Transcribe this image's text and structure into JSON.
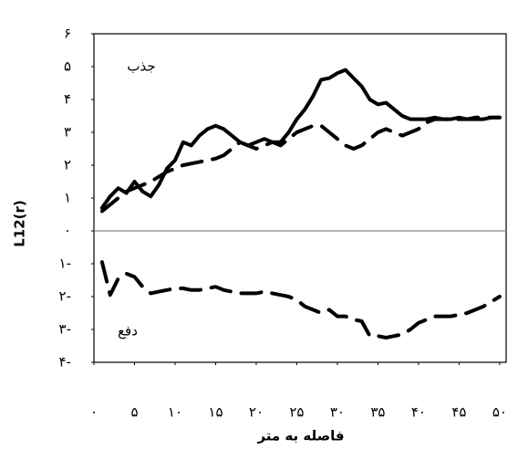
{
  "chart_data": {
    "type": "line",
    "ylabel": "L12(r)",
    "xlabel": "فاصله به متر",
    "annotations": [
      "جذب",
      "دفع"
    ],
    "x": [
      1,
      2,
      3,
      4,
      5,
      6,
      7,
      8,
      9,
      10,
      11,
      12,
      13,
      14,
      15,
      16,
      17,
      18,
      19,
      20,
      21,
      22,
      23,
      24,
      25,
      26,
      27,
      28,
      29,
      30,
      31,
      32,
      33,
      34,
      35,
      36,
      37,
      38,
      39,
      40,
      41,
      42,
      43,
      44,
      45,
      46,
      47,
      48,
      49,
      50
    ],
    "series": [
      {
        "color": "#000000",
        "dashed": false,
        "values": [
          0.7,
          1.05,
          1.3,
          1.15,
          1.5,
          1.2,
          1.05,
          1.4,
          1.9,
          2.15,
          2.7,
          2.6,
          2.9,
          3.1,
          3.2,
          3.1,
          2.9,
          2.7,
          2.6,
          2.7,
          2.8,
          2.7,
          2.7,
          3.0,
          3.4,
          3.7,
          4.1,
          4.6,
          4.65,
          4.8,
          4.9,
          4.65,
          4.4,
          4.0,
          3.85,
          3.9,
          3.7,
          3.5,
          3.4,
          3.4,
          3.4,
          3.45,
          3.4,
          3.4,
          3.45,
          3.4,
          3.4,
          3.4,
          3.45,
          3.45
        ]
      },
      {
        "color": "#000000",
        "dashed": true,
        "values": [
          0.6,
          0.8,
          1.0,
          1.2,
          1.3,
          1.4,
          1.5,
          1.65,
          1.8,
          1.9,
          2.0,
          2.05,
          2.1,
          2.15,
          2.2,
          2.3,
          2.5,
          2.7,
          2.6,
          2.5,
          2.6,
          2.7,
          2.6,
          2.8,
          3.0,
          3.1,
          3.2,
          3.2,
          3.0,
          2.8,
          2.6,
          2.5,
          2.6,
          2.8,
          3.0,
          3.1,
          3.0,
          2.9,
          3.0,
          3.1,
          3.3,
          3.4,
          3.4,
          3.4,
          3.4,
          3.4,
          3.45,
          3.45,
          3.45,
          3.45
        ]
      },
      {
        "color": "#000000",
        "dashed": true,
        "values": [
          -0.95,
          -1.95,
          -1.45,
          -1.3,
          -1.4,
          -1.7,
          -1.9,
          -1.85,
          -1.8,
          -1.75,
          -1.75,
          -1.8,
          -1.8,
          -1.75,
          -1.7,
          -1.8,
          -1.85,
          -1.9,
          -1.9,
          -1.9,
          -1.85,
          -1.9,
          -1.95,
          -2.0,
          -2.1,
          -2.3,
          -2.4,
          -2.5,
          -2.4,
          -2.6,
          -2.6,
          -2.7,
          -2.75,
          -3.2,
          -3.2,
          -3.25,
          -3.2,
          -3.15,
          -3.0,
          -2.8,
          -2.7,
          -2.6,
          -2.6,
          -2.6,
          -2.55,
          -2.5,
          -2.4,
          -2.3,
          -2.15,
          -2.0
        ]
      }
    ],
    "xlim": [
      0,
      50.8
    ],
    "ylim": [
      -4,
      6
    ],
    "xticks": [
      {
        "value": 0,
        "label": "۰"
      },
      {
        "value": 5,
        "label": "۵"
      },
      {
        "value": 10,
        "label": "۱۰"
      },
      {
        "value": 15,
        "label": "۱۵"
      },
      {
        "value": 20,
        "label": "۲۰"
      },
      {
        "value": 25,
        "label": "۲۵"
      },
      {
        "value": 30,
        "label": "۳۰"
      },
      {
        "value": 35,
        "label": "۳۵"
      },
      {
        "value": 40,
        "label": "۴۰"
      },
      {
        "value": 45,
        "label": "۴۵"
      },
      {
        "value": 50,
        "label": "۵۰"
      }
    ],
    "yticks": [
      {
        "value": -4,
        "label": "۴-"
      },
      {
        "value": -3,
        "label": "۳-"
      },
      {
        "value": -2,
        "label": "۲-"
      },
      {
        "value": -1,
        "label": "۱-"
      },
      {
        "value": 0,
        "label": "۰"
      },
      {
        "value": 1,
        "label": "۱"
      },
      {
        "value": 2,
        "label": "۲"
      },
      {
        "value": 3,
        "label": "۳"
      },
      {
        "value": 4,
        "label": "۴"
      },
      {
        "value": 5,
        "label": "۵"
      },
      {
        "value": 6,
        "label": "۶"
      }
    ],
    "zero_line": true
  }
}
